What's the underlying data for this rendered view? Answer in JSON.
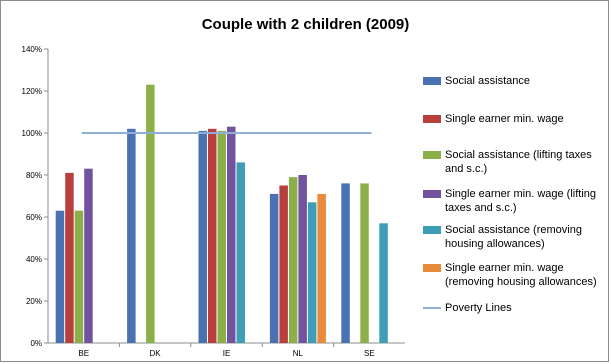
{
  "chart_data": {
    "type": "bar",
    "title": "Couple with 2 children (2009)",
    "categories": [
      "BE",
      "DK",
      "IE",
      "NL",
      "SE"
    ],
    "ylim": [
      0,
      140
    ],
    "yticks": [
      "0%",
      "20%",
      "40%",
      "60%",
      "80%",
      "100%",
      "120%",
      "140%"
    ],
    "grid": false,
    "legend": "right",
    "series": [
      {
        "name": "Social assistance",
        "color": "#4a72b2",
        "values": [
          63,
          102,
          101,
          71,
          76
        ]
      },
      {
        "name": "Single earner min. wage",
        "color": "#b7403f",
        "values": [
          81,
          null,
          102,
          75,
          null
        ]
      },
      {
        "name": "Social assistance (lifting taxes and s.c.)",
        "color": "#8cb049",
        "values": [
          63,
          123,
          101,
          79,
          76
        ]
      },
      {
        "name": "Single earner min. wage (lifting taxes and s.c.)",
        "color": "#7253a0",
        "values": [
          83,
          null,
          103,
          80,
          null
        ]
      },
      {
        "name": "Social assistance (removing housing allowances)",
        "color": "#3d9eb6",
        "values": [
          null,
          null,
          86,
          67,
          57
        ]
      },
      {
        "name": "Single earner min. wage (removing housing allowances)",
        "color": "#e88b3b",
        "values": [
          null,
          null,
          null,
          71,
          null
        ]
      }
    ],
    "poverty_line": {
      "name": "Poverty Lines",
      "color": "#8eb0d8",
      "value": 100
    }
  }
}
